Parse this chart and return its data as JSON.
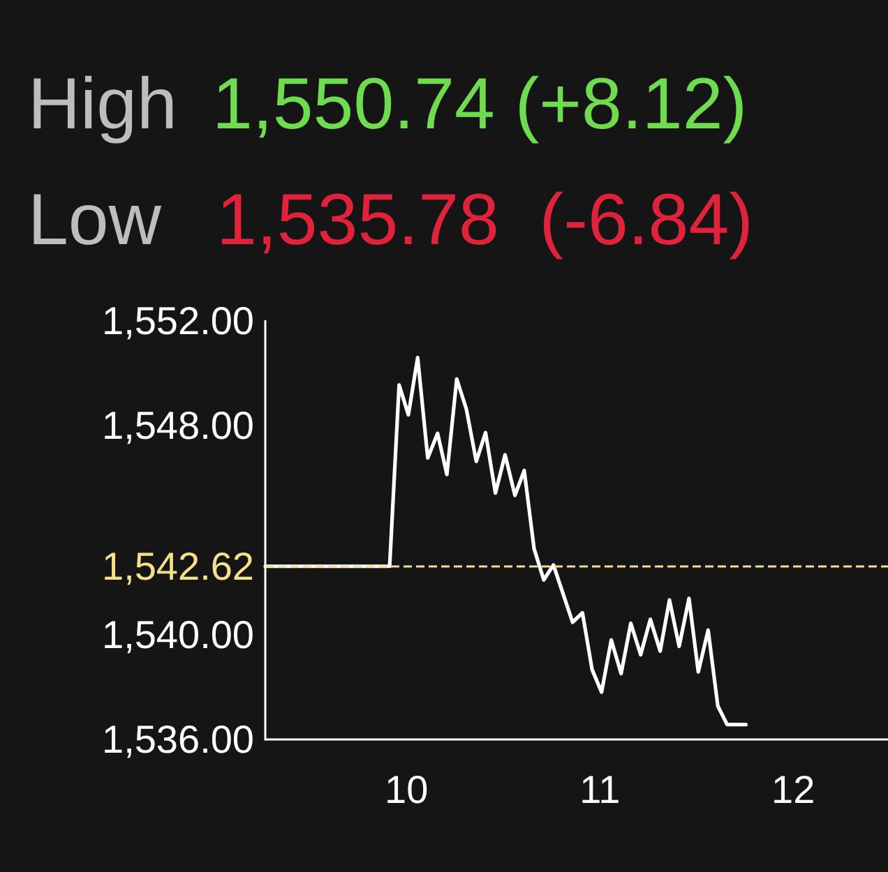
{
  "chart_data": {
    "type": "line",
    "annotations": [
      "High",
      "1,550.74 (+8.12)",
      "Low",
      "1,535.78  (-6.84)"
    ],
    "xlim": [
      9.27,
      12.49
    ],
    "xticks": [
      10,
      11,
      12
    ],
    "ylim": [
      1536,
      1552
    ],
    "yticks": [
      {
        "value": 1536,
        "label": "1,536.00"
      },
      {
        "value": 1540,
        "label": "1,540.00"
      },
      {
        "value": 1548,
        "label": "1,548.00"
      },
      {
        "value": 1552,
        "label": "1,552.00"
      }
    ],
    "grid": false,
    "marker": "none",
    "line_style": "solid",
    "ref_lines": [
      {
        "axis": "y",
        "value": 1542.62,
        "label": "1,542.62",
        "color": "#f5e08a",
        "line_style": "dashed"
      }
    ],
    "series": [
      {
        "color": "#ffffff",
        "x": [
          9.27,
          9.913,
          9.962,
          10.01,
          10.058,
          10.11,
          10.161,
          10.209,
          10.26,
          10.31,
          10.361,
          10.409,
          10.46,
          10.51,
          10.561,
          10.609,
          10.66,
          10.71,
          10.76,
          10.859,
          10.91,
          10.96,
          11.009,
          11.059,
          11.11,
          11.16,
          11.211,
          11.261,
          11.312,
          11.36,
          11.41,
          11.461,
          11.509,
          11.56,
          11.61,
          11.658,
          11.755
        ],
        "values": [
          1542.62,
          1542.62,
          1549.55,
          1548.41,
          1550.6,
          1546.76,
          1547.7,
          1546.13,
          1549.78,
          1548.62,
          1546.63,
          1547.73,
          1545.42,
          1546.88,
          1545.33,
          1546.28,
          1543.29,
          1542.1,
          1542.67,
          1540.48,
          1540.84,
          1538.67,
          1537.81,
          1539.8,
          1538.52,
          1540.44,
          1539.24,
          1540.59,
          1539.38,
          1541.33,
          1539.56,
          1541.39,
          1538.58,
          1540.18,
          1537.28,
          1536.57,
          1536.57
        ]
      }
    ]
  }
}
